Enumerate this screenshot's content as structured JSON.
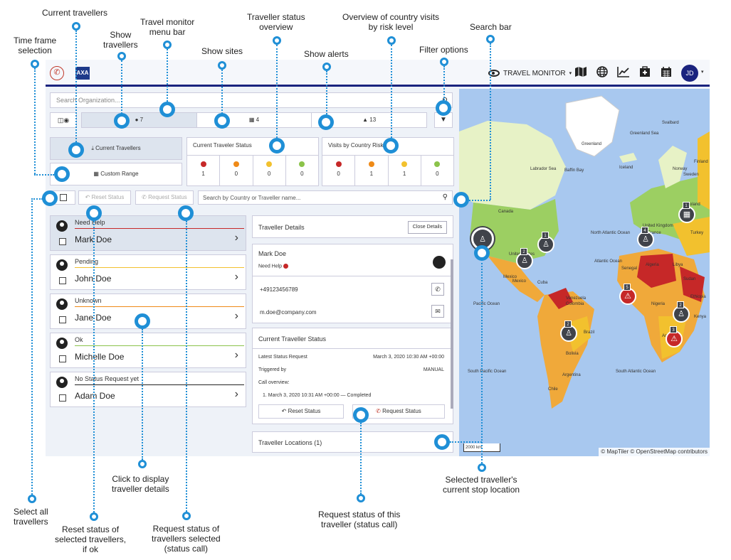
{
  "annotations": {
    "current_travellers": "Current travellers",
    "time_frame_selection": [
      "Time frame",
      "selection"
    ],
    "show_travellers": [
      "Show",
      "travellers"
    ],
    "travel_monitor_menu_bar": [
      "Travel monitor",
      "menu bar"
    ],
    "show_sites": "Show sites",
    "traveller_status_overview": [
      "Traveller status",
      "overview"
    ],
    "show_alerts": "Show alerts",
    "overview_country_visits": [
      "Overview of country visits",
      "by risk level"
    ],
    "filter_options": "Filter options",
    "search_bar": "Search bar",
    "select_all_travellers": [
      "Select all",
      "travellers"
    ],
    "reset_status": [
      "Reset status of",
      "selected travellers,",
      "if ok"
    ],
    "request_status_selected": [
      "Request status of",
      "travellers selected",
      "(status call)"
    ],
    "click_to_display": [
      "Click to display",
      "traveller details"
    ],
    "request_status_this": [
      "Request status of this",
      "traveller (status call)"
    ],
    "selected_traveller_location": [
      "Selected traveller's",
      "current stop location"
    ]
  },
  "topbar": {
    "travel_monitor_label": "TRAVEL MONITOR",
    "avatar_initials": "JD",
    "logo_text": "AXA"
  },
  "toolbar": {
    "search_org_placeholder": "Search Organization...",
    "travellers_count": "7",
    "sites_count": "4",
    "alerts_count": "13"
  },
  "current_travellers_button": "Current Travellers",
  "custom_range_button": "Custom Range",
  "traveler_status": {
    "title": "Current Traveler Status",
    "cells": [
      {
        "color": "#c62828",
        "value": "1"
      },
      {
        "color": "#ef8a17",
        "value": "0"
      },
      {
        "color": "#f2c12e",
        "value": "0"
      },
      {
        "color": "#8bc34a",
        "value": "0"
      }
    ]
  },
  "country_risk": {
    "title": "Visits by Country Risk",
    "cells": [
      {
        "color": "#c62828",
        "value": "0"
      },
      {
        "color": "#ef8a17",
        "value": "1"
      },
      {
        "color": "#f2c12e",
        "value": "1"
      },
      {
        "color": "#8bc34a",
        "value": "0"
      }
    ]
  },
  "actions": {
    "reset_status": "Reset Status",
    "request_status": "Request Status",
    "search_traveller_placeholder": "Search by Country or Traveller name..."
  },
  "travellers": [
    {
      "status": "Need Help",
      "name": "Mark Doe",
      "color": "#c62828"
    },
    {
      "status": "Pending",
      "name": "John Doe",
      "color": "#f2c12e"
    },
    {
      "status": "Unknown",
      "name": "Jane Doe",
      "color": "#ef8a17"
    },
    {
      "status": "Ok",
      "name": "Michelle Doe",
      "color": "#8bc34a"
    },
    {
      "status": "No Status Request yet",
      "name": "Adam Doe",
      "color": "#222222"
    }
  ],
  "details": {
    "header": "Traveller Details",
    "close": "Close Details",
    "name": "Mark Doe",
    "status": "Need Help",
    "phone": "+49123456789",
    "email": "m.doe@company.com",
    "current_status_title": "Current Traveller Status",
    "latest_label": "Latest Status Request",
    "latest_value": "March 3, 2020 10:30 AM +00:00",
    "triggered_label": "Triggered by",
    "triggered_value": "MANUAL",
    "call_overview_label": "Call overview:",
    "call_item": "1. March 3, 2020 10:31 AM +00:00 — Completed",
    "reset_btn": "Reset Status",
    "request_btn": "Request Status",
    "locations": "Traveller Locations (1)"
  },
  "map": {
    "labels": [
      "Greenland",
      "Canada",
      "United States",
      "Mexico",
      "Mexico",
      "Colombia",
      "Brazil",
      "Argentina",
      "Pacific Ocean",
      "Atlantic Ocean",
      "North Atlantic Ocean",
      "South Pacific Ocean",
      "South Atlantic Ocean",
      "Baffin Bay",
      "Iceland",
      "United Kingdom",
      "France",
      "Spain",
      "Algeria",
      "Libya",
      "Nigeria",
      "Angola",
      "Ethiopia",
      "Kenya",
      "Sudan",
      "Turkey",
      "Norway",
      "Sweden",
      "Finland",
      "Poland",
      "Chile",
      "Bolivia",
      "Venezuela",
      "Cuba",
      "Senegal",
      "Greenland Sea",
      "Svalbard",
      "Labrador Sea"
    ],
    "attribution": "© MapTiler © OpenStreetMap contributors",
    "scale": "2000 km",
    "pins": [
      "1",
      "1",
      "2",
      "2",
      "3",
      "4",
      "5",
      "2"
    ]
  }
}
